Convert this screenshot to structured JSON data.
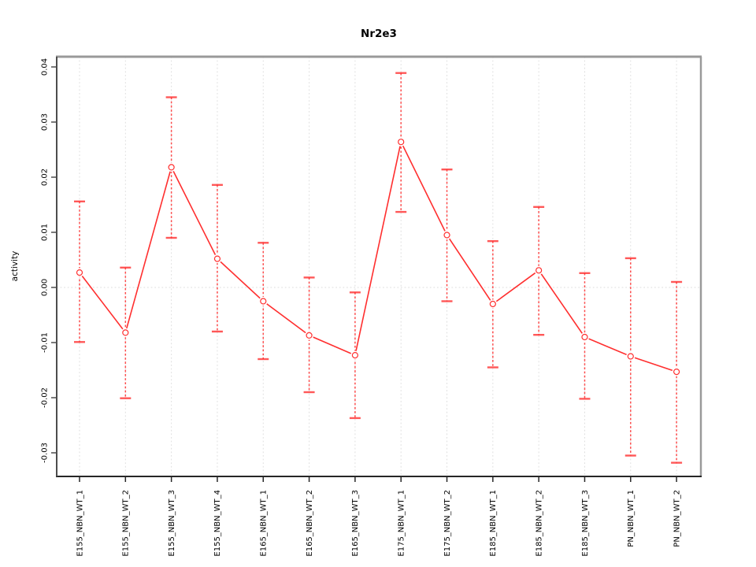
{
  "page": {
    "background": "#ffffff"
  },
  "chart_data": {
    "type": "line",
    "title": "Nr2e3",
    "xlabel": "",
    "ylabel": "activity",
    "legend": "none",
    "grid": {
      "vertical_dotted_per_category": true,
      "horizontal_dotted_at_zero": true,
      "grid_color": "#dedede"
    },
    "categories": [
      "E155_NBN_WT_1",
      "E155_NBN_WT_2",
      "E155_NBN_WT_3",
      "E155_NBN_WT_4",
      "E165_NBN_WT_1",
      "E165_NBN_WT_2",
      "E165_NBN_WT_3",
      "E175_NBN_WT_1",
      "E175_NBN_WT_2",
      "E185_NBN_WT_1",
      "E185_NBN_WT_2",
      "E185_NBN_WT_3",
      "PN_NBN_WT_1",
      "PN_NBN_WT_2"
    ],
    "series": [
      {
        "name": "activity",
        "color": "#ff2f2f",
        "marker": "open-circle",
        "values": [
          0.0027,
          -0.0082,
          0.0218,
          0.0052,
          -0.0025,
          -0.0087,
          -0.0123,
          0.0264,
          0.0095,
          -0.003,
          0.0031,
          -0.009,
          -0.0125,
          -0.0153
        ],
        "error_high": [
          0.0156,
          0.0036,
          0.0345,
          0.0186,
          0.0081,
          0.0018,
          -0.0009,
          0.0389,
          0.0214,
          0.0084,
          0.0146,
          0.0026,
          0.0053,
          0.001
        ],
        "error_low": [
          -0.0099,
          -0.0201,
          0.009,
          -0.008,
          -0.013,
          -0.019,
          -0.0237,
          0.0137,
          -0.0025,
          -0.0145,
          -0.0086,
          -0.0202,
          -0.0305,
          -0.0318
        ]
      }
    ],
    "ytick_labels": [
      "0.04",
      "0.03",
      "0.02",
      "0.01",
      "0.00",
      "-0.01",
      "-0.02",
      "-0.03"
    ],
    "ytick_values": [
      0.04,
      0.03,
      0.02,
      0.01,
      0.0,
      -0.01,
      -0.02,
      -0.03
    ],
    "ylim": [
      -0.034,
      0.042
    ]
  }
}
